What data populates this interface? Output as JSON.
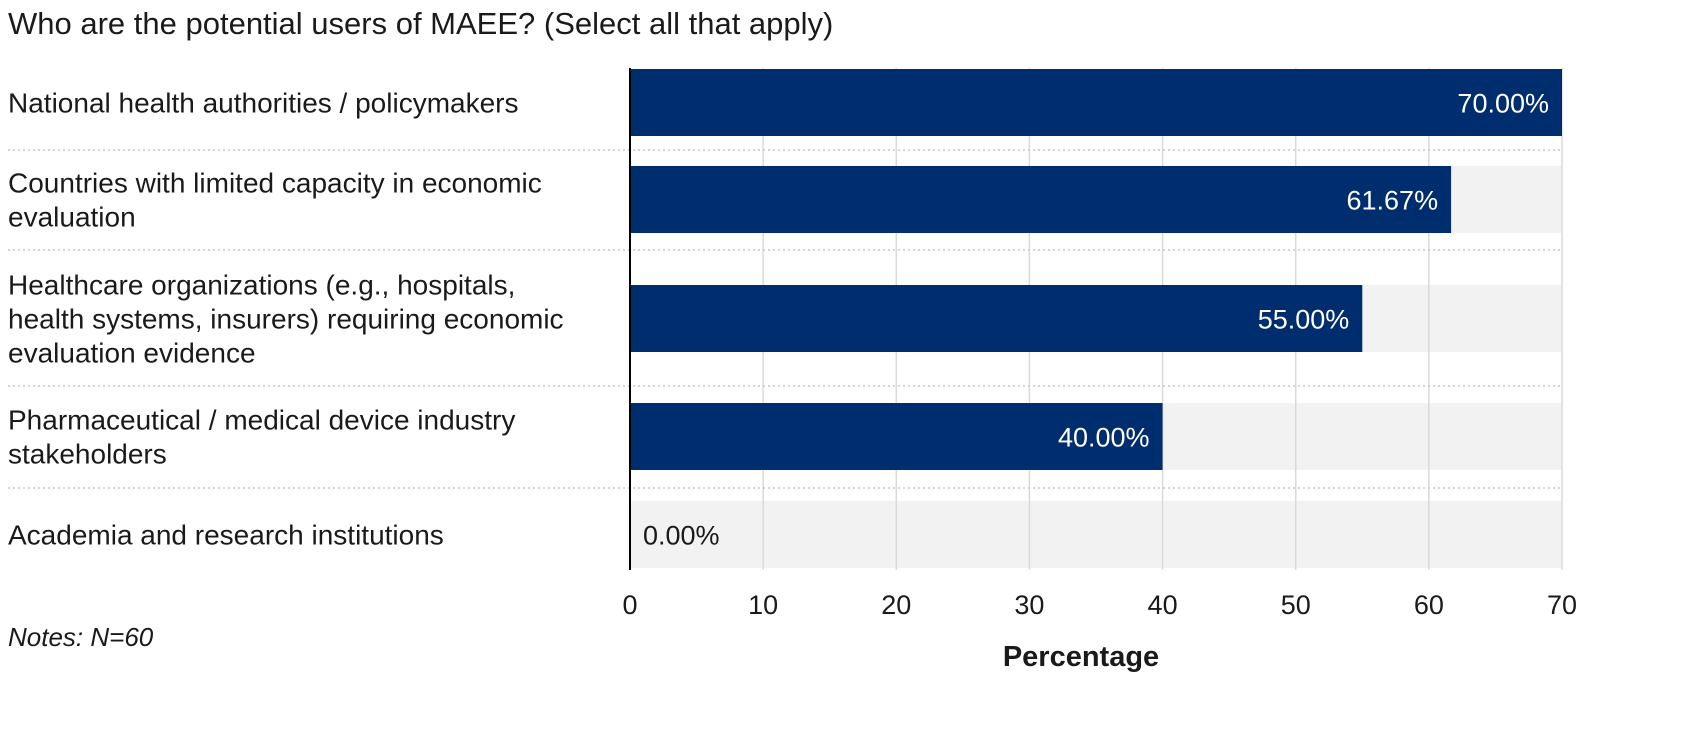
{
  "chart_data": {
    "type": "bar",
    "orientation": "horizontal",
    "title": "Who are the potential users of MAEE? (Select all that apply)",
    "categories": [
      [
        "National health authorities / policymakers"
      ],
      [
        "Countries with limited capacity in economic",
        "evaluation"
      ],
      [
        "Healthcare organizations (e.g., hospitals,",
        "health systems, insurers) requiring economic",
        "evaluation evidence"
      ],
      [
        "Pharmaceutical / medical device industry",
        "stakeholders"
      ],
      [
        "Academia and research institutions"
      ]
    ],
    "values": [
      70.0,
      61.67,
      55.0,
      40.0,
      0.0
    ],
    "value_labels": [
      "70.00%",
      "61.67%",
      "55.00%",
      "40.00%",
      "0.00%"
    ],
    "xlabel": "Percentage",
    "ylabel": "",
    "xlim": [
      0,
      70
    ],
    "xticks": [
      0,
      10,
      20,
      30,
      40,
      50,
      60,
      70
    ],
    "grid": true,
    "legend": "none",
    "note": "Notes: N=60",
    "colors": {
      "bar": "#002d6e",
      "track": "#f2f2f2",
      "grid": "#d9d9d9",
      "separator": "#c8c8c8",
      "label_inside": "#ffffff",
      "label_outside": "#1a1a1a",
      "axis": "#000000"
    }
  }
}
